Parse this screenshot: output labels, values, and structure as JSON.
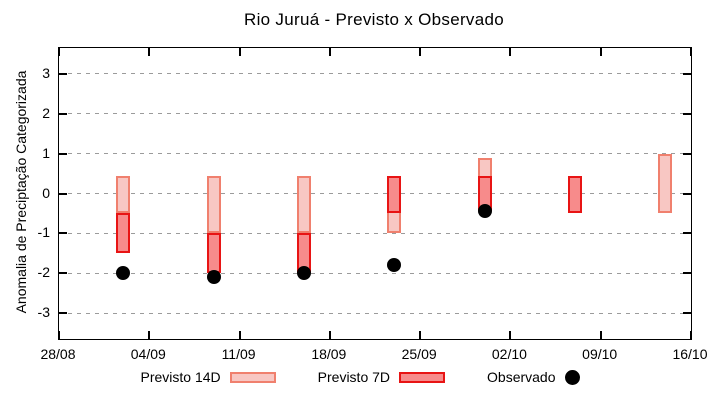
{
  "page": {
    "background": "#ffffff"
  },
  "chart_data": {
    "type": "bar",
    "subtype": "floating-range-bars-with-scatter-overlay",
    "title": "Rio Juruá - Previsto x Observado",
    "xlabel": "",
    "ylabel": "Anomalia de Preciptação Categorizada",
    "ylim": [
      -3.65,
      3.65
    ],
    "yticks": [
      3,
      2,
      1,
      0,
      -1,
      -2,
      -3
    ],
    "grid": "horizontal dashed gray lines at each integer y tick",
    "legend_position": "bottom-center",
    "xlim_days": [
      0,
      49
    ],
    "xticks": [
      {
        "day": 0,
        "label": "28/08"
      },
      {
        "day": 7,
        "label": "04/09"
      },
      {
        "day": 14,
        "label": "11/09"
      },
      {
        "day": 21,
        "label": "18/09"
      },
      {
        "day": 28,
        "label": "25/09"
      },
      {
        "day": 35,
        "label": "02/10"
      },
      {
        "day": 42,
        "label": "09/10"
      },
      {
        "day": 49,
        "label": "16/10"
      }
    ],
    "series": [
      {
        "name": "Previsto 14D",
        "kind": "range-bar",
        "fill": "#f8c7c3",
        "border": "#f0806e",
        "points": [
          {
            "date": "02/09",
            "day": 5,
            "low": -0.5,
            "high": 0.45
          },
          {
            "date": "09/09",
            "day": 12,
            "low": -1.0,
            "high": 0.45
          },
          {
            "date": "16/09",
            "day": 19,
            "low": -1.0,
            "high": 0.45
          },
          {
            "date": "23/09",
            "day": 26,
            "low": -1.0,
            "high": 0.45
          },
          {
            "date": "30/09",
            "day": 33,
            "low": -0.45,
            "high": 0.9
          },
          {
            "date": "14/10",
            "day": 47,
            "low": -0.5,
            "high": 1.0
          }
        ]
      },
      {
        "name": "Previsto 7D",
        "kind": "range-bar",
        "fill": "#f78b8b",
        "border": "#e81414",
        "points": [
          {
            "date": "02/09",
            "day": 5,
            "low": -1.5,
            "high": -0.5
          },
          {
            "date": "09/09",
            "day": 12,
            "low": -2.0,
            "high": -1.0
          },
          {
            "date": "16/09",
            "day": 19,
            "low": -2.0,
            "high": -1.0
          },
          {
            "date": "23/09",
            "day": 26,
            "low": -0.5,
            "high": 0.45
          },
          {
            "date": "30/09",
            "day": 33,
            "low": -0.45,
            "high": 0.45
          },
          {
            "date": "07/10",
            "day": 40,
            "low": -0.5,
            "high": 0.45
          }
        ]
      },
      {
        "name": "Observado",
        "kind": "scatter",
        "color": "#000000",
        "points": [
          {
            "date": "02/09",
            "day": 5,
            "value": -2.0
          },
          {
            "date": "09/09",
            "day": 12,
            "value": -2.1
          },
          {
            "date": "16/09",
            "day": 19,
            "value": -2.0
          },
          {
            "date": "23/09",
            "day": 26,
            "value": -1.8
          },
          {
            "date": "30/09",
            "day": 33,
            "value": -0.45
          }
        ]
      }
    ],
    "colors": {
      "axis": "#000000",
      "grid": "#9b9b9b",
      "background": "#ffffff"
    }
  }
}
